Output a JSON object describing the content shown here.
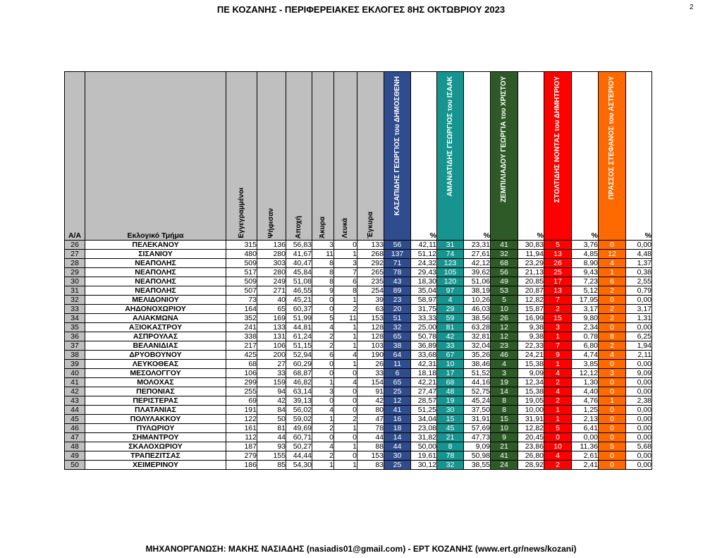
{
  "header": {
    "title": "ΠΕ ΚΟΖΑΝΗΣ - ΠΕΡΙΦΕΡΕΙΑΚΕΣ ΕΚΛΟΓΕΣ 8ΗΣ ΟΚΤΩΒΡΙΟΥ 2023",
    "page": "2"
  },
  "footer": {
    "text": "ΜΗΧΑΝΟΡΓΑΝΩΣΗ: ΜΑΚΗΣ ΝΑΣΙΑΔΗΣ (nasiadis01@gmail.com) - ΕΡΤ ΚΟΖΑΝΗΣ (www.ert.gr/news/kozani)"
  },
  "columns": {
    "aa": "Α/Α",
    "name": "Εκλογικό Τμήμα",
    "registered": "Εγγεγραμμένοι",
    "voted": "Ψήφισαν",
    "abstention": "Αποχή",
    "invalid": "Άκυρα",
    "blank": "Λευκά",
    "valid": "Έγκυρα",
    "pct": "%"
  },
  "candidates": [
    {
      "name": "ΚΑΣΑΠΙΔΗΣ ΓΕΩΡΓΙΟΣ του ΔΗΜΟΣΘΕΝΗ",
      "color": "#2f4c8e"
    },
    {
      "name": "ΑΜΑΝΑΤΙΔΗΣ ΓΕΩΡΓΙΟΣ του ΙΣΑΑΚ",
      "color": "#17948f"
    },
    {
      "name": "ΖΕΜΠΙΛΙΑΔΟΥ ΓΕΩΡΓΙΑ του ΧΡΙΣΤΟΥ",
      "color": "#2e5a28"
    },
    {
      "name": "ΣΤΟΛΤΙΔΗΣ ΝΟΝΤΑΣ του ΔΗΜΗΤΡΙΟΥ",
      "color": "#ff0000"
    },
    {
      "name": "ΠΡΑΣΣΟΣ ΣΤΕΦΑΝΟΣ του ΑΣΤΕΡΙΟΥ",
      "color": "#ff6a00"
    }
  ],
  "rows": [
    [
      "26",
      "ΠΕΛΕΚΑΝΟΥ",
      "315",
      "136",
      "56,83",
      "3",
      "0",
      "133",
      "56",
      "42,11",
      "31",
      "23,31",
      "41",
      "30,83",
      "5",
      "3,76",
      "0",
      "0,00"
    ],
    [
      "27",
      "ΣΙΣΑΝΙΟΥ",
      "480",
      "280",
      "41,67",
      "11",
      "1",
      "268",
      "137",
      "51,12",
      "74",
      "27,61",
      "32",
      "11,94",
      "13",
      "4,85",
      "12",
      "4,48"
    ],
    [
      "28",
      "ΝΕΑΠΟΛΗΣ",
      "509",
      "303",
      "40,47",
      "8",
      "3",
      "292",
      "71",
      "24,32",
      "123",
      "42,12",
      "68",
      "23,29",
      "26",
      "8,90",
      "4",
      "1,37"
    ],
    [
      "29",
      "ΝΕΑΠΟΛΗΣ",
      "517",
      "280",
      "45,84",
      "8",
      "7",
      "265",
      "78",
      "29,43",
      "105",
      "39,62",
      "56",
      "21,13",
      "25",
      "9,43",
      "1",
      "0,38"
    ],
    [
      "30",
      "ΝΕΑΠΟΛΗΣ",
      "509",
      "249",
      "51,08",
      "8",
      "6",
      "235",
      "43",
      "18,30",
      "120",
      "51,06",
      "49",
      "20,85",
      "17",
      "7,23",
      "6",
      "2,55"
    ],
    [
      "31",
      "ΝΕΑΠΟΛΗΣ",
      "507",
      "271",
      "46,55",
      "9",
      "8",
      "254",
      "89",
      "35,04",
      "97",
      "38,19",
      "53",
      "20,87",
      "13",
      "5,12",
      "2",
      "0,79"
    ],
    [
      "32",
      "ΜΕΛΙΔΟΝΙΟΥ",
      "73",
      "40",
      "45,21",
      "0",
      "1",
      "39",
      "23",
      "58,97",
      "4",
      "10,26",
      "5",
      "12,82",
      "7",
      "17,95",
      "0",
      "0,00"
    ],
    [
      "33",
      "ΑΗΔΟΝΟΧΩΡΙΟΥ",
      "164",
      "65",
      "60,37",
      "0",
      "2",
      "63",
      "20",
      "31,75",
      "29",
      "46,03",
      "10",
      "15,87",
      "2",
      "3,17",
      "2",
      "3,17"
    ],
    [
      "34",
      "ΑΛΙΑΚΜΩΝΑ",
      "352",
      "169",
      "51,99",
      "5",
      "11",
      "153",
      "51",
      "33,33",
      "59",
      "38,56",
      "26",
      "16,99",
      "15",
      "9,80",
      "2",
      "1,31"
    ],
    [
      "35",
      "ΑΞΙΟΚΑΣΤΡΟΥ",
      "241",
      "133",
      "44,81",
      "4",
      "1",
      "128",
      "32",
      "25,00",
      "81",
      "63,28",
      "12",
      "9,38",
      "3",
      "2,34",
      "0",
      "0,00"
    ],
    [
      "36",
      "ΑΣΠΡΟΥΛΑΣ",
      "338",
      "131",
      "61,24",
      "2",
      "1",
      "128",
      "65",
      "50,78",
      "42",
      "32,81",
      "12",
      "9,38",
      "1",
      "0,78",
      "8",
      "6,25"
    ],
    [
      "37",
      "ΒΕΛΑΝΙΔΙΑΣ",
      "217",
      "106",
      "51,15",
      "2",
      "1",
      "103",
      "38",
      "36,89",
      "33",
      "32,04",
      "23",
      "22,33",
      "7",
      "6,80",
      "2",
      "1,94"
    ],
    [
      "38",
      "ΔΡΥΟΒΟΥΝΟΥ",
      "425",
      "200",
      "52,94",
      "6",
      "4",
      "190",
      "64",
      "33,68",
      "67",
      "35,26",
      "46",
      "24,21",
      "9",
      "4,74",
      "4",
      "2,11"
    ],
    [
      "39",
      "ΛΕΥΚΟΘΕΑΣ",
      "68",
      "27",
      "60,29",
      "0",
      "1",
      "26",
      "11",
      "42,31",
      "10",
      "38,46",
      "4",
      "15,38",
      "1",
      "3,85",
      "0",
      "0,00"
    ],
    [
      "40",
      "ΜΕΣΟΛΟΓΓΟΥ",
      "106",
      "33",
      "68,87",
      "0",
      "0",
      "33",
      "6",
      "18,18",
      "17",
      "51,52",
      "3",
      "9,09",
      "4",
      "12,12",
      "3",
      "9,09"
    ],
    [
      "41",
      "ΜΟΛΟΧΑΣ",
      "299",
      "159",
      "46,82",
      "1",
      "4",
      "154",
      "65",
      "42,21",
      "68",
      "44,16",
      "19",
      "12,34",
      "2",
      "1,30",
      "0",
      "0,00"
    ],
    [
      "42",
      "ΠΕΠΟΝΙΑΣ",
      "255",
      "94",
      "63,14",
      "3",
      "0",
      "91",
      "25",
      "27,47",
      "48",
      "52,75",
      "14",
      "15,38",
      "4",
      "4,40",
      "0",
      "0,00"
    ],
    [
      "43",
      "ΠΕΡΙΣΤΕΡΑΣ",
      "69",
      "42",
      "39,13",
      "0",
      "0",
      "42",
      "12",
      "28,57",
      "19",
      "45,24",
      "8",
      "19,05",
      "2",
      "4,76",
      "1",
      "2,38"
    ],
    [
      "44",
      "ΠΛΑΤΑΝΙΑΣ",
      "191",
      "84",
      "56,02",
      "4",
      "0",
      "80",
      "41",
      "51,25",
      "30",
      "37,50",
      "8",
      "10,00",
      "1",
      "1,25",
      "0",
      "0,00"
    ],
    [
      "45",
      "ΠΟΛΥΛΑΚΚΟΥ",
      "122",
      "50",
      "59,02",
      "1",
      "2",
      "47",
      "16",
      "34,04",
      "15",
      "31,91",
      "15",
      "31,91",
      "1",
      "2,13",
      "0",
      "0,00"
    ],
    [
      "46",
      "ΠΥΛΩΡΙΟΥ",
      "161",
      "81",
      "49,69",
      "2",
      "1",
      "78",
      "18",
      "23,08",
      "45",
      "57,69",
      "10",
      "12,82",
      "5",
      "6,41",
      "0",
      "0,00"
    ],
    [
      "47",
      "ΣΗΜΑΝΤΡΟΥ",
      "112",
      "44",
      "60,71",
      "0",
      "0",
      "44",
      "14",
      "31,82",
      "21",
      "47,73",
      "9",
      "20,45",
      "0",
      "0,00",
      "0",
      "0,00"
    ],
    [
      "48",
      "ΣΚΑΛΟΧΩΡΙΟΥ",
      "187",
      "93",
      "50,27",
      "4",
      "1",
      "88",
      "44",
      "50,00",
      "8",
      "9,09",
      "21",
      "23,86",
      "10",
      "11,36",
      "5",
      "5,68"
    ],
    [
      "49",
      "ΤΡΑΠΕΖΙΤΣΑΣ",
      "279",
      "155",
      "44,44",
      "2",
      "0",
      "153",
      "30",
      "19,61",
      "78",
      "50,98",
      "41",
      "26,80",
      "4",
      "2,61",
      "0",
      "0,00"
    ],
    [
      "50",
      "ΧΕΙΜΕΡΙΝΟΥ",
      "186",
      "85",
      "54,30",
      "1",
      "1",
      "83",
      "25",
      "30,12",
      "32",
      "38,55",
      "24",
      "28,92",
      "2",
      "2,41",
      "0",
      "0,00"
    ]
  ]
}
